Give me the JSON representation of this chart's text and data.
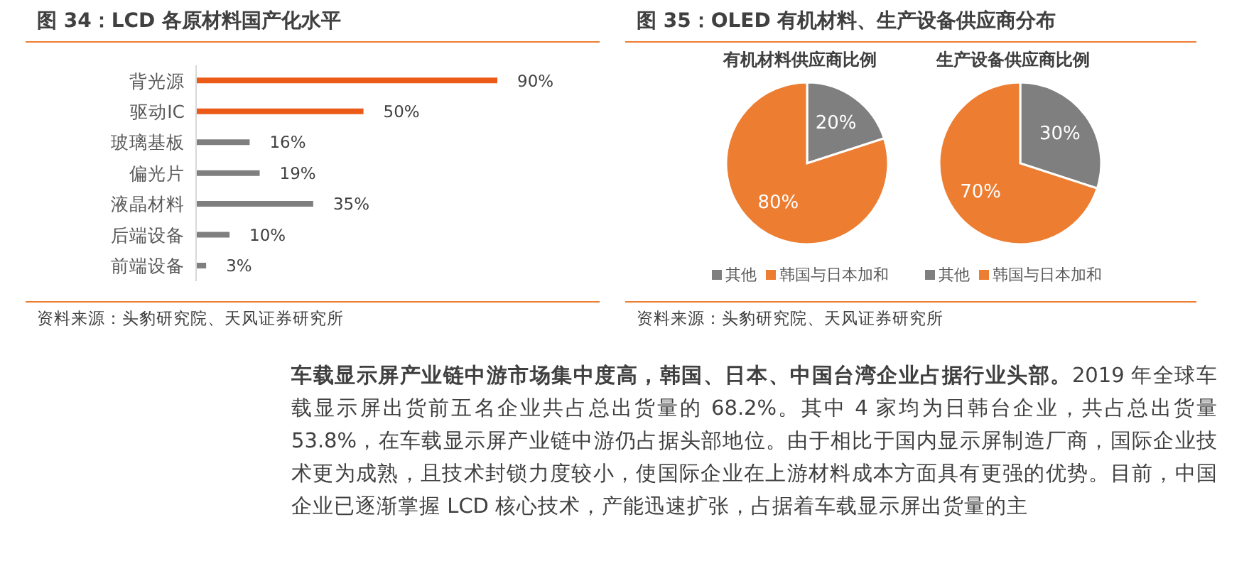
{
  "chart_data": [
    {
      "type": "bar",
      "orientation": "horizontal",
      "title": "图 34：LCD 各原材料国产化水平",
      "categories": [
        "背光源",
        "驱动IC",
        "玻璃基板",
        "偏光片",
        "液晶材料",
        "后端设备",
        "前端设备"
      ],
      "values": [
        90,
        50,
        16,
        19,
        35,
        10,
        3
      ],
      "colors": [
        "#eb5a17",
        "#eb5a17",
        "#7f7f7f",
        "#7f7f7f",
        "#7f7f7f",
        "#7f7f7f",
        "#7f7f7f"
      ],
      "value_labels": [
        "90%",
        "50%",
        "16%",
        "19%",
        "35%",
        "10%",
        "3%"
      ],
      "annotations": [
        "资料来源：头豹研究院、天风证券研究所"
      ]
    },
    {
      "type": "pie",
      "title": "图 35：OLED 有机材料、生产设备供应商分布",
      "subtitle": "有机材料供应商比例",
      "categories": [
        "其他",
        "韩国与日本加和"
      ],
      "values": [
        20,
        80
      ],
      "colors": [
        "#7f7f7f",
        "#ed7d31"
      ],
      "value_labels": [
        "20%",
        "80%"
      ],
      "legend": "bottom",
      "annotations": [
        "资料来源：头豹研究院、天风证券研究所"
      ]
    },
    {
      "type": "pie",
      "subtitle": "生产设备供应商比例",
      "categories": [
        "其他",
        "韩国与日本加和"
      ],
      "values": [
        30,
        70
      ],
      "colors": [
        "#7f7f7f",
        "#ed7d31"
      ],
      "value_labels": [
        "30%",
        "70%"
      ],
      "legend": "bottom",
      "annotations": [
        "车载显示屏产业链中游市场集中度高，韩国、日本、中国台湾企业占据行业头部。",
        "2019 年全球车载显示屏出货前五名企业共占总出货量的 68.2%。其中 4 家均为日韩台企业，共占总出货量 53.8%，在车载显示屏产业链中游仍占据头部地位。由于相比于国内显示屏制造厂商，国际企业技术更为成熟，且技术封锁力度较小，使国际企业在上游材料成本方面具有更强的优势。目前，中国企业已逐渐掌握 LCD 核心技术，产能迅速扩张，占据着车载显示屏出货量的主"
      ]
    }
  ]
}
